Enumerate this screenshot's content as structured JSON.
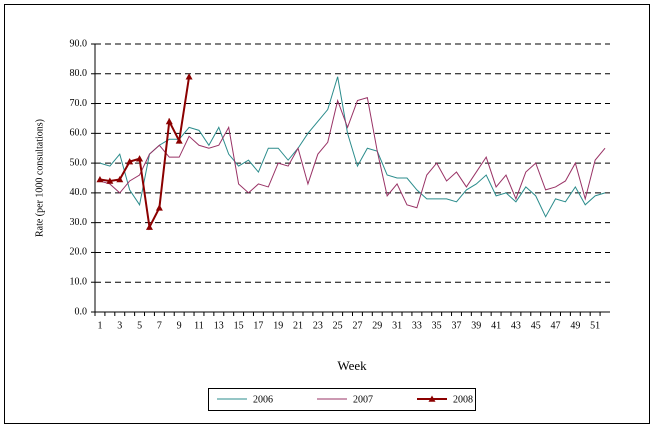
{
  "chart_data": {
    "type": "line",
    "y_label": "Rate (per 1000 consultations)",
    "x_label": "Week",
    "categories": [
      1,
      null,
      3,
      null,
      5,
      null,
      7,
      null,
      9,
      null,
      11,
      null,
      13,
      null,
      15,
      null,
      17,
      null,
      19,
      null,
      21,
      null,
      23,
      null,
      25,
      null,
      27,
      null,
      29,
      null,
      31,
      null,
      33,
      null,
      35,
      null,
      37,
      null,
      39,
      null,
      41,
      null,
      43,
      null,
      45,
      null,
      47,
      null,
      49,
      null,
      51,
      null
    ],
    "ylim": [
      0,
      90
    ],
    "yticks": [
      {
        "value": 0,
        "label": "0.0"
      },
      {
        "value": 10,
        "label": "10.0"
      },
      {
        "value": 20,
        "label": "20.0"
      },
      {
        "value": 30,
        "label": "30.0"
      },
      {
        "value": 40,
        "label": "40.0"
      },
      {
        "value": 50,
        "label": "50.0"
      },
      {
        "value": 60,
        "label": "60.0"
      },
      {
        "value": 70,
        "label": "70.0"
      },
      {
        "value": 80,
        "label": "80.0"
      },
      {
        "value": 90,
        "label": "90.0"
      }
    ],
    "grid": true,
    "legend": "bottom",
    "series": [
      {
        "name": "2006",
        "color": "#2b8c8c",
        "values": [
          50,
          49,
          53,
          41,
          36,
          53,
          56,
          58,
          58,
          62,
          61,
          56,
          62,
          53,
          49,
          51,
          47,
          55,
          55,
          51,
          55,
          60,
          64,
          68,
          79,
          60,
          49,
          55,
          54,
          46,
          45,
          45,
          41,
          38,
          38,
          38,
          37,
          41,
          43,
          46,
          39,
          40,
          37,
          42,
          39,
          32,
          38,
          37,
          42,
          36,
          39,
          40
        ]
      },
      {
        "name": "2007",
        "color": "#993366",
        "values": [
          44,
          43,
          40,
          44,
          46,
          53,
          56,
          52,
          52,
          59,
          56,
          55,
          56,
          62,
          43,
          40,
          43,
          42,
          50,
          49,
          55,
          43,
          53,
          57,
          71,
          62,
          71,
          72,
          54,
          39,
          43,
          36,
          35,
          46,
          50,
          44,
          47,
          42,
          47,
          52,
          42,
          46,
          38,
          47,
          50,
          41,
          42,
          44,
          50,
          38,
          51,
          55
        ]
      },
      {
        "name": "2008",
        "color": "#8b0000",
        "marker": "triangle",
        "values": [
          44.5,
          44,
          44.5,
          50.5,
          51.5,
          28.5,
          35,
          64,
          57.5,
          79,
          null,
          null,
          null,
          null,
          null,
          null,
          null,
          null,
          null,
          null,
          null,
          null,
          null,
          null,
          null,
          null,
          null,
          null,
          null,
          null,
          null,
          null,
          null,
          null,
          null,
          null,
          null,
          null,
          null,
          null,
          null,
          null,
          null,
          null,
          null,
          null,
          null,
          null,
          null,
          null,
          null,
          null
        ]
      }
    ]
  }
}
